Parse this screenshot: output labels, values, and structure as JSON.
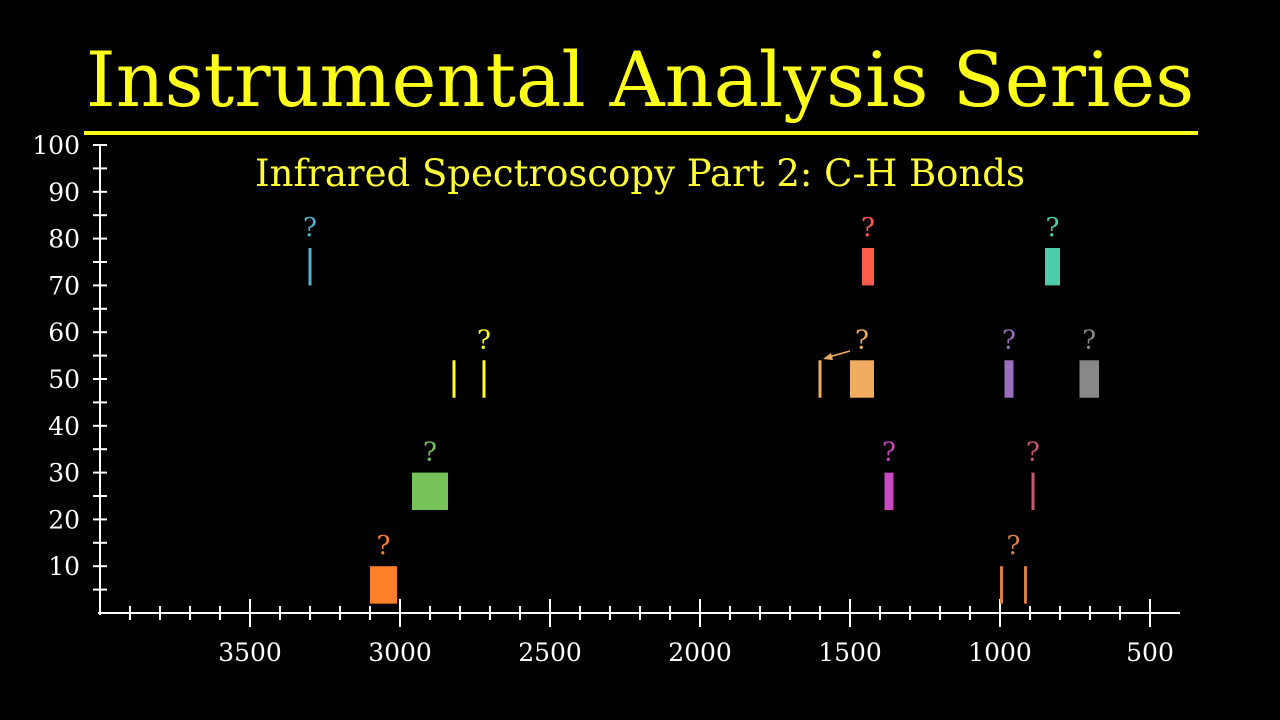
{
  "header": {
    "title": "Instrumental Analysis Series",
    "subtitle": "Infrared Spectroscopy Part 2: C-H Bonds"
  },
  "chart_data": {
    "type": "bar",
    "title": "Infrared Spectroscopy Part 2: C-H Bonds",
    "xlabel": "",
    "ylabel": "",
    "xlim": [
      4000,
      400
    ],
    "ylim": [
      0,
      100
    ],
    "x_ticks": [
      3500,
      3000,
      2500,
      2000,
      1500,
      1000,
      500
    ],
    "y_ticks": [
      10,
      20,
      30,
      40,
      50,
      60,
      70,
      80,
      90,
      100
    ],
    "grid": false,
    "series": [
      {
        "color": "#4fb5cc",
        "label": "?",
        "bands": [
          {
            "x": [
              3305,
              3295
            ],
            "y": [
              70,
              78
            ]
          }
        ]
      },
      {
        "color": "#ff5c4d",
        "label": "?",
        "bands": [
          {
            "x": [
              1460,
              1420
            ],
            "y": [
              70,
              78
            ]
          }
        ]
      },
      {
        "color": "#4dcca7",
        "label": "?",
        "bands": [
          {
            "x": [
              850,
              800
            ],
            "y": [
              70,
              78
            ]
          }
        ]
      },
      {
        "color": "#ffff1a",
        "label": "?",
        "bands": [
          {
            "x": [
              2825,
              2815
            ],
            "y": [
              46,
              54
            ]
          },
          {
            "x": [
              2725,
              2715
            ],
            "y": [
              46,
              54
            ]
          }
        ]
      },
      {
        "color": "#f0ad62",
        "label": "?",
        "bands": [
          {
            "x": [
              1605,
              1595
            ],
            "y": [
              46,
              54
            ]
          },
          {
            "x": [
              1500,
              1420
            ],
            "y": [
              46,
              54
            ]
          }
        ]
      },
      {
        "color": "#9a6fbd",
        "label": "?",
        "bands": [
          {
            "x": [
              985,
              955
            ],
            "y": [
              46,
              54
            ]
          }
        ]
      },
      {
        "color": "#888888",
        "label": "?",
        "bands": [
          {
            "x": [
              735,
              670
            ],
            "y": [
              46,
              54
            ]
          }
        ]
      },
      {
        "color": "#78c25a",
        "label": "?",
        "bands": [
          {
            "x": [
              2960,
              2840
            ],
            "y": [
              22,
              30
            ]
          }
        ]
      },
      {
        "color": "#c949c0",
        "label": "?",
        "bands": [
          {
            "x": [
              1385,
              1355
            ],
            "y": [
              22,
              30
            ]
          }
        ]
      },
      {
        "color": "#c9596a",
        "label": "?",
        "bands": [
          {
            "x": [
              895,
              885
            ],
            "y": [
              22,
              30
            ]
          }
        ]
      },
      {
        "color": "#ff7f2a",
        "label": "?",
        "bands": [
          {
            "x": [
              3100,
              3010
            ],
            "y": [
              2,
              10
            ]
          }
        ]
      },
      {
        "color": "#d9804a",
        "label": "?",
        "bands": [
          {
            "x": [
              1000,
              990
            ],
            "y": [
              2,
              10
            ]
          },
          {
            "x": [
              920,
              910
            ],
            "y": [
              2,
              10
            ]
          }
        ]
      }
    ]
  }
}
